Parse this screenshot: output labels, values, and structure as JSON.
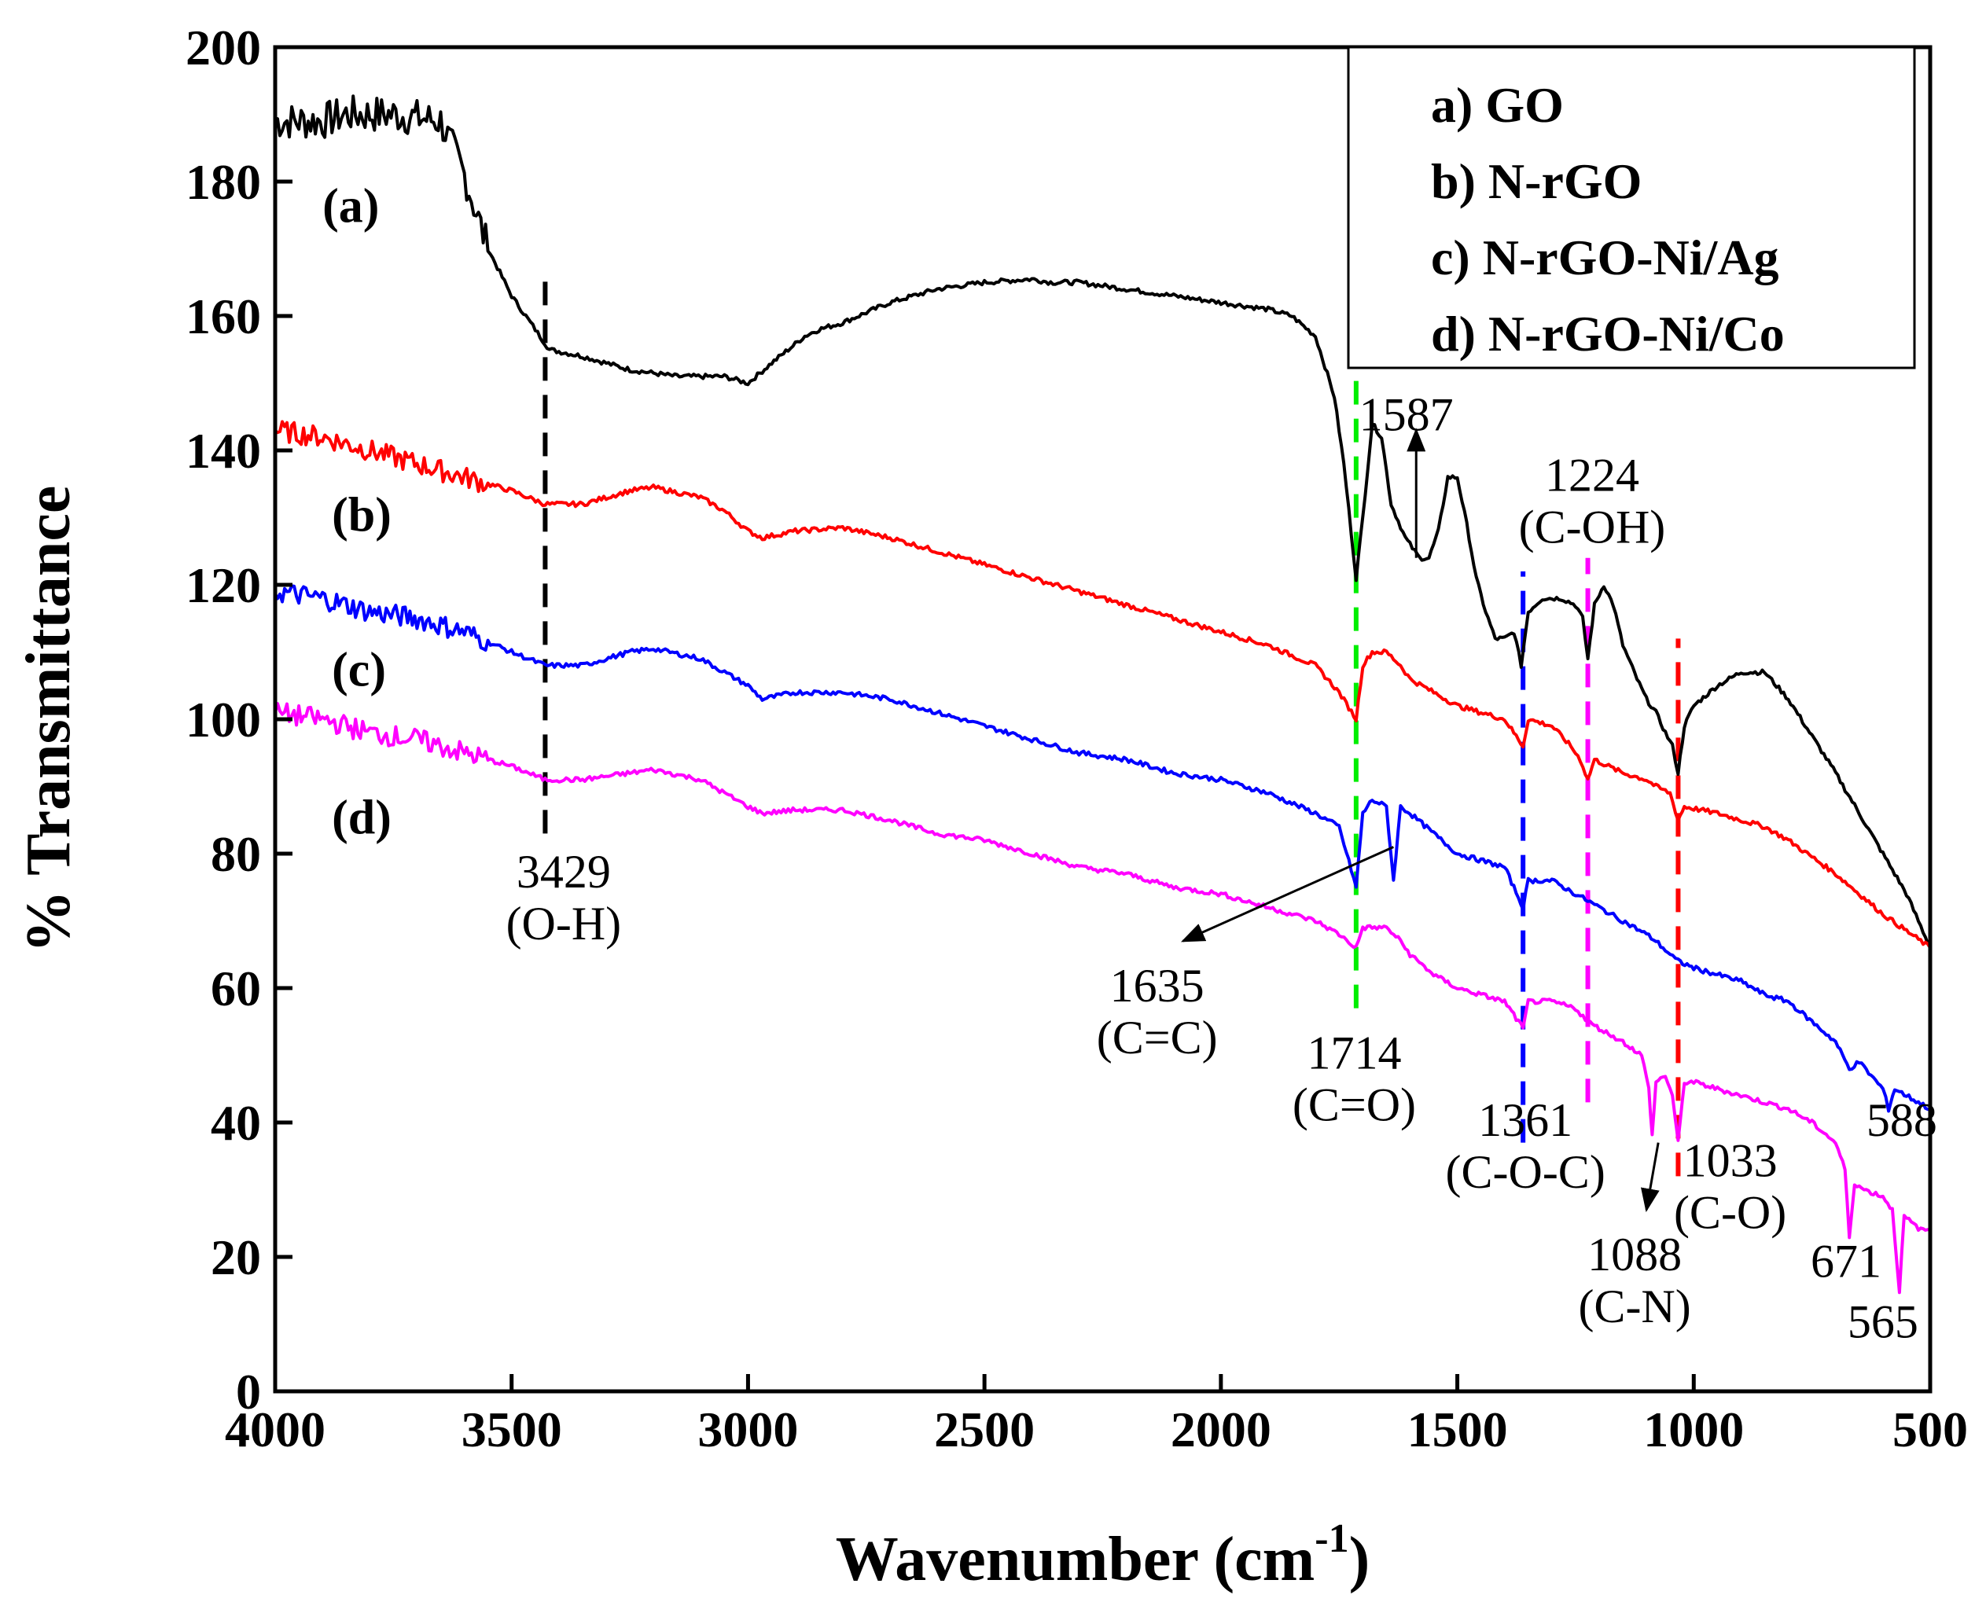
{
  "chart_data": {
    "type": "line",
    "title": "",
    "xlabel": "Wavenumber (cm",
    "xlabel_sup": "-1",
    "xlabel_close": ")",
    "ylabel": "% Transmittance",
    "xlim": [
      4000,
      500
    ],
    "ylim": [
      0,
      200
    ],
    "x_ticks": [
      4000,
      3500,
      3000,
      2500,
      2000,
      1500,
      1000,
      500
    ],
    "y_ticks": [
      0,
      20,
      40,
      60,
      80,
      100,
      120,
      140,
      160,
      180,
      200
    ],
    "legend": {
      "position": "top-right",
      "entries": [
        "a) GO",
        "b) N-rGO",
        "c) N-rGO-Ni/Ag",
        "d) N-rGO-Ni/Co"
      ]
    },
    "series": [
      {
        "name": "a) GO",
        "label": "(a)",
        "label_x": 3900,
        "label_y": 174,
        "color": "#000000",
        "points": [
          [
            4000,
            189
          ],
          [
            3900,
            189
          ],
          [
            3850,
            190
          ],
          [
            3750,
            190
          ],
          [
            3650,
            189
          ],
          [
            3600,
            181
          ],
          [
            3550,
            170
          ],
          [
            3500,
            163
          ],
          [
            3450,
            158
          ],
          [
            3420,
            155
          ],
          [
            3350,
            154
          ],
          [
            3250,
            152
          ],
          [
            3150,
            151
          ],
          [
            3050,
            151
          ],
          [
            3000,
            150
          ],
          [
            2950,
            153
          ],
          [
            2880,
            157
          ],
          [
            2850,
            158
          ],
          [
            2800,
            159
          ],
          [
            2700,
            162
          ],
          [
            2600,
            164
          ],
          [
            2500,
            165
          ],
          [
            2400,
            165.5
          ],
          [
            2360,
            165
          ],
          [
            2300,
            165
          ],
          [
            2200,
            164
          ],
          [
            2100,
            163
          ],
          [
            2000,
            162
          ],
          [
            1900,
            161
          ],
          [
            1850,
            160
          ],
          [
            1800,
            157
          ],
          [
            1760,
            148
          ],
          [
            1740,
            138
          ],
          [
            1714,
            121
          ],
          [
            1700,
            130
          ],
          [
            1680,
            144
          ],
          [
            1660,
            142
          ],
          [
            1640,
            132
          ],
          [
            1610,
            127
          ],
          [
            1580,
            124
          ],
          [
            1560,
            124
          ],
          [
            1540,
            128
          ],
          [
            1520,
            136
          ],
          [
            1500,
            136
          ],
          [
            1480,
            129
          ],
          [
            1460,
            121
          ],
          [
            1440,
            116
          ],
          [
            1420,
            112
          ],
          [
            1400,
            112
          ],
          [
            1380,
            113
          ],
          [
            1365,
            108
          ],
          [
            1350,
            116
          ],
          [
            1320,
            118
          ],
          [
            1280,
            118
          ],
          [
            1250,
            117
          ],
          [
            1235,
            115
          ],
          [
            1224,
            109
          ],
          [
            1210,
            117
          ],
          [
            1190,
            120
          ],
          [
            1170,
            117
          ],
          [
            1150,
            111
          ],
          [
            1120,
            106
          ],
          [
            1100,
            103
          ],
          [
            1080,
            101
          ],
          [
            1060,
            98
          ],
          [
            1045,
            96
          ],
          [
            1033,
            92
          ],
          [
            1020,
            99
          ],
          [
            1000,
            102
          ],
          [
            950,
            105
          ],
          [
            900,
            107
          ],
          [
            850,
            107
          ],
          [
            800,
            103
          ],
          [
            700,
            92
          ],
          [
            650,
            86
          ],
          [
            600,
            80
          ],
          [
            550,
            74
          ],
          [
            500,
            66
          ]
        ]
      },
      {
        "name": "b) N-rGO",
        "label": "(b)",
        "label_x": 3880,
        "label_y": 128,
        "color": "#ff0000",
        "points": [
          [
            4000,
            143
          ],
          [
            3900,
            142
          ],
          [
            3800,
            140
          ],
          [
            3700,
            138
          ],
          [
            3600,
            136
          ],
          [
            3500,
            134
          ],
          [
            3429,
            132
          ],
          [
            3350,
            132
          ],
          [
            3250,
            134
          ],
          [
            3200,
            134.5
          ],
          [
            3100,
            133
          ],
          [
            3050,
            131
          ],
          [
            3000,
            128
          ],
          [
            2970,
            127
          ],
          [
            2900,
            128
          ],
          [
            2800,
            128.5
          ],
          [
            2700,
            127
          ],
          [
            2600,
            125
          ],
          [
            2500,
            123
          ],
          [
            2400,
            121
          ],
          [
            2300,
            119
          ],
          [
            2200,
            117
          ],
          [
            2100,
            115
          ],
          [
            2000,
            113
          ],
          [
            1900,
            111
          ],
          [
            1800,
            108
          ],
          [
            1750,
            104
          ],
          [
            1714,
            100
          ],
          [
            1700,
            108
          ],
          [
            1680,
            110
          ],
          [
            1650,
            110
          ],
          [
            1620,
            108
          ],
          [
            1600,
            106
          ],
          [
            1550,
            104
          ],
          [
            1500,
            102
          ],
          [
            1450,
            101
          ],
          [
            1400,
            100
          ],
          [
            1361,
            96
          ],
          [
            1350,
            100
          ],
          [
            1300,
            99
          ],
          [
            1260,
            96
          ],
          [
            1240,
            94
          ],
          [
            1224,
            91
          ],
          [
            1210,
            94
          ],
          [
            1150,
            92
          ],
          [
            1100,
            91
          ],
          [
            1080,
            90
          ],
          [
            1050,
            89
          ],
          [
            1033,
            85
          ],
          [
            1020,
            87
          ],
          [
            950,
            86
          ],
          [
            900,
            85
          ],
          [
            850,
            84
          ],
          [
            800,
            82
          ],
          [
            700,
            77
          ],
          [
            600,
            71
          ],
          [
            500,
            66
          ]
        ]
      },
      {
        "name": "c) N-rGO-Ni/Ag",
        "label": "(c)",
        "label_x": 3880,
        "label_y": 105,
        "color": "#0000ff",
        "points": [
          [
            4000,
            119
          ],
          [
            3900,
            118
          ],
          [
            3800,
            116
          ],
          [
            3700,
            115
          ],
          [
            3600,
            113
          ],
          [
            3500,
            110
          ],
          [
            3429,
            108
          ],
          [
            3350,
            108
          ],
          [
            3250,
            110
          ],
          [
            3200,
            110.5
          ],
          [
            3100,
            109
          ],
          [
            3000,
            105
          ],
          [
            2970,
            103
          ],
          [
            2900,
            104
          ],
          [
            2800,
            104
          ],
          [
            2700,
            103
          ],
          [
            2600,
            101
          ],
          [
            2500,
            99
          ],
          [
            2400,
            97
          ],
          [
            2300,
            95
          ],
          [
            2200,
            94
          ],
          [
            2100,
            92
          ],
          [
            2000,
            91
          ],
          [
            1900,
            89
          ],
          [
            1800,
            86
          ],
          [
            1750,
            84
          ],
          [
            1714,
            75
          ],
          [
            1700,
            86
          ],
          [
            1680,
            88
          ],
          [
            1650,
            87
          ],
          [
            1635,
            76
          ],
          [
            1620,
            87
          ],
          [
            1600,
            86
          ],
          [
            1550,
            83
          ],
          [
            1500,
            80
          ],
          [
            1450,
            79
          ],
          [
            1400,
            78
          ],
          [
            1361,
            72
          ],
          [
            1350,
            76
          ],
          [
            1300,
            76
          ],
          [
            1250,
            74
          ],
          [
            1224,
            73
          ],
          [
            1200,
            72
          ],
          [
            1150,
            70
          ],
          [
            1100,
            68
          ],
          [
            1080,
            67
          ],
          [
            1050,
            65
          ],
          [
            1033,
            64
          ],
          [
            1000,
            63
          ],
          [
            950,
            62
          ],
          [
            900,
            61
          ],
          [
            850,
            59
          ],
          [
            800,
            58
          ],
          [
            700,
            52
          ],
          [
            671,
            48
          ],
          [
            650,
            49
          ],
          [
            600,
            45
          ],
          [
            588,
            42
          ],
          [
            575,
            45
          ],
          [
            550,
            44
          ],
          [
            500,
            42
          ]
        ]
      },
      {
        "name": "d) N-rGO-Ni/Co",
        "label": "(d)",
        "label_x": 3880,
        "label_y": 83,
        "color": "#ff00ff",
        "points": [
          [
            4000,
            101
          ],
          [
            3900,
            100
          ],
          [
            3800,
            98
          ],
          [
            3700,
            97
          ],
          [
            3600,
            95
          ],
          [
            3500,
            93
          ],
          [
            3429,
            91
          ],
          [
            3350,
            91
          ],
          [
            3250,
            92
          ],
          [
            3200,
            92.5
          ],
          [
            3100,
            91
          ],
          [
            3000,
            87
          ],
          [
            2970,
            86
          ],
          [
            2900,
            86.5
          ],
          [
            2800,
            86.5
          ],
          [
            2700,
            85
          ],
          [
            2600,
            83
          ],
          [
            2500,
            82
          ],
          [
            2400,
            80
          ],
          [
            2300,
            78
          ],
          [
            2200,
            77
          ],
          [
            2100,
            75
          ],
          [
            2000,
            74
          ],
          [
            1900,
            72
          ],
          [
            1800,
            70
          ],
          [
            1750,
            68
          ],
          [
            1714,
            66
          ],
          [
            1700,
            69
          ],
          [
            1650,
            69
          ],
          [
            1620,
            67
          ],
          [
            1600,
            65
          ],
          [
            1550,
            62
          ],
          [
            1500,
            60
          ],
          [
            1450,
            59
          ],
          [
            1400,
            58
          ],
          [
            1361,
            54
          ],
          [
            1350,
            58
          ],
          [
            1300,
            58
          ],
          [
            1250,
            57
          ],
          [
            1224,
            55
          ],
          [
            1200,
            54
          ],
          [
            1150,
            52
          ],
          [
            1110,
            50
          ],
          [
            1095,
            45
          ],
          [
            1088,
            38
          ],
          [
            1080,
            46
          ],
          [
            1060,
            47
          ],
          [
            1045,
            44
          ],
          [
            1033,
            37
          ],
          [
            1020,
            46
          ],
          [
            1000,
            46
          ],
          [
            950,
            45
          ],
          [
            900,
            44
          ],
          [
            850,
            43
          ],
          [
            800,
            42
          ],
          [
            750,
            40
          ],
          [
            700,
            37
          ],
          [
            680,
            33
          ],
          [
            671,
            23
          ],
          [
            660,
            31
          ],
          [
            640,
            30
          ],
          [
            600,
            29
          ],
          [
            580,
            27
          ],
          [
            565,
            15
          ],
          [
            555,
            26
          ],
          [
            520,
            24
          ],
          [
            500,
            24
          ]
        ]
      }
    ],
    "reference_lines": [
      {
        "x": 3429,
        "color": "#000000",
        "y_from": 83,
        "y_to": 167
      },
      {
        "x": 1714,
        "color": "#00ee00",
        "y_from": 57,
        "y_to": 153
      },
      {
        "x": 1361,
        "color": "#0000ff",
        "y_from": 37,
        "y_to": 122
      },
      {
        "x": 1224,
        "color": "#ff00ff",
        "y_from": 43,
        "y_to": 124
      },
      {
        "x": 1033,
        "color": "#ff0000",
        "y_from": 32,
        "y_to": 112
      }
    ],
    "annotations": [
      {
        "id": "3429",
        "lines": [
          "3429",
          "(O-H)"
        ],
        "x": 3390,
        "y": 75,
        "anchor": "middle"
      },
      {
        "id": "1587",
        "lines": [
          "1587"
        ],
        "x": 1608,
        "y": 143,
        "anchor": "middle"
      },
      {
        "id": "1224",
        "lines": [
          "1224",
          "(C-OH)"
        ],
        "x": 1215,
        "y": 134,
        "anchor": "middle"
      },
      {
        "id": "1635",
        "lines": [
          "1635",
          "(C=C)"
        ],
        "x": 2135,
        "y": 58,
        "anchor": "middle"
      },
      {
        "id": "1714",
        "lines": [
          "1714",
          "(C=O)"
        ],
        "x": 1718,
        "y": 48,
        "anchor": "middle"
      },
      {
        "id": "1361",
        "lines": [
          "1361",
          "(C-O-C)"
        ],
        "x": 1356,
        "y": 38,
        "anchor": "middle"
      },
      {
        "id": "1088",
        "lines": [
          "1088",
          "(C-N)"
        ],
        "x": 1125,
        "y": 18,
        "anchor": "middle"
      },
      {
        "id": "1033",
        "lines": [
          "1033",
          "(C-O)"
        ],
        "x": 923,
        "y": 32,
        "anchor": "middle"
      },
      {
        "id": "588",
        "lines": [
          "588"
        ],
        "x": 560,
        "y": 38,
        "anchor": "middle"
      },
      {
        "id": "671",
        "lines": [
          "671"
        ],
        "x": 678,
        "y": 17,
        "anchor": "middle"
      },
      {
        "id": "565",
        "lines": [
          "565"
        ],
        "x": 600,
        "y": 8,
        "anchor": "middle"
      }
    ],
    "arrows": [
      {
        "id": "arrow-1587",
        "from": [
          1587,
          124
        ],
        "to": [
          1587,
          143
        ]
      },
      {
        "id": "arrow-1635",
        "from": [
          1635,
          81
        ],
        "to": [
          2080,
          67
        ]
      },
      {
        "id": "arrow-1088",
        "from": [
          1075,
          37
        ],
        "to": [
          1100,
          27
        ]
      }
    ]
  }
}
